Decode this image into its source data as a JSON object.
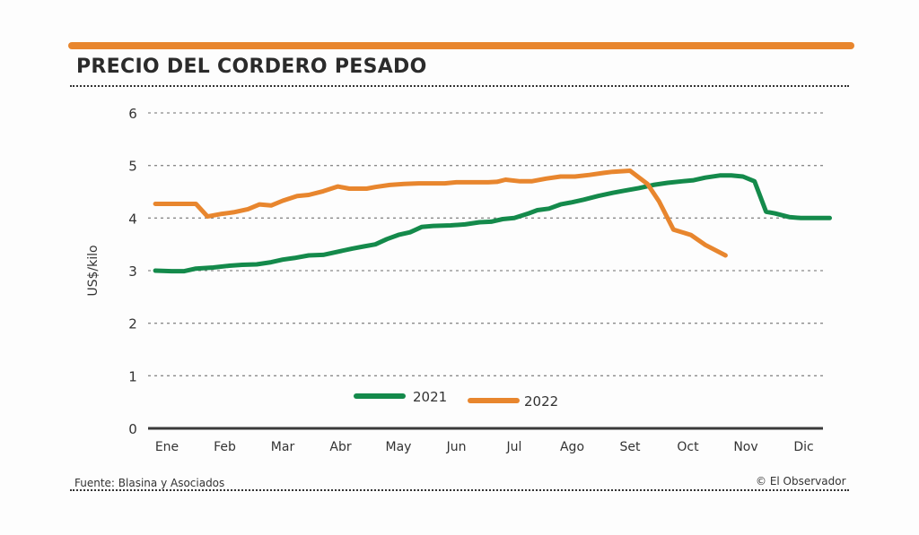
{
  "header": {
    "title": "PRECIO DEL CORDERO PESADO",
    "accent_color": "#e8862e"
  },
  "footer": {
    "source": "Fuente: Blasina y Asociados",
    "credit": "© El Observador"
  },
  "chart_data": {
    "type": "line",
    "title": "PRECIO DEL CORDERO PESADO",
    "xlabel": "",
    "ylabel": "US$/kilo",
    "ylim": [
      0,
      6
    ],
    "yticks": [
      "0",
      "1",
      "2",
      "3",
      "4",
      "5",
      "6"
    ],
    "categories": [
      "Ene",
      "Feb",
      "Mar",
      "Abr",
      "May",
      "Jun",
      "Jul",
      "Ago",
      "Set",
      "Oct",
      "Nov",
      "Dic"
    ],
    "grid": true,
    "legend": "bottom-center",
    "x_unit": "month index (0 = Ene)",
    "series": [
      {
        "name": "2021",
        "color": "#148a4b",
        "x": [
          -0.2,
          0.08,
          0.3,
          0.5,
          0.8,
          1.05,
          1.3,
          1.55,
          1.8,
          2.0,
          2.2,
          2.45,
          2.7,
          2.95,
          3.2,
          3.4,
          3.6,
          3.8,
          4.0,
          4.2,
          4.4,
          4.6,
          4.9,
          5.15,
          5.4,
          5.6,
          5.8,
          6.0,
          6.25,
          6.4,
          6.6,
          6.8,
          7.0,
          7.2,
          7.45,
          7.7,
          7.9,
          8.15,
          8.4,
          8.65,
          8.9,
          9.1,
          9.3,
          9.55,
          9.75,
          9.95,
          10.15,
          10.35,
          10.5,
          10.75,
          10.95,
          11.2,
          11.45
        ],
        "values": [
          3.0,
          2.99,
          2.99,
          3.04,
          3.06,
          3.09,
          3.11,
          3.12,
          3.16,
          3.21,
          3.24,
          3.29,
          3.3,
          3.36,
          3.42,
          3.46,
          3.5,
          3.6,
          3.68,
          3.73,
          3.83,
          3.85,
          3.86,
          3.88,
          3.92,
          3.93,
          3.98,
          4.0,
          4.09,
          4.15,
          4.18,
          4.26,
          4.3,
          4.35,
          4.42,
          4.48,
          4.52,
          4.57,
          4.63,
          4.67,
          4.7,
          4.72,
          4.77,
          4.81,
          4.81,
          4.79,
          4.7,
          4.12,
          4.09,
          4.02,
          4.0,
          4.0,
          4.0
        ]
      },
      {
        "name": "2022",
        "color": "#e8862e",
        "x": [
          -0.2,
          0.1,
          0.3,
          0.5,
          0.7,
          0.95,
          1.15,
          1.4,
          1.6,
          1.8,
          2.0,
          2.25,
          2.45,
          2.7,
          2.95,
          3.15,
          3.45,
          3.6,
          3.85,
          4.1,
          4.35,
          4.6,
          4.8,
          5.0,
          5.3,
          5.55,
          5.7,
          5.85,
          6.1,
          6.3,
          6.55,
          6.8,
          7.05,
          7.3,
          7.55,
          7.7,
          8.0,
          8.3,
          8.5,
          8.75,
          9.05,
          9.3,
          9.65
        ],
        "values": [
          4.27,
          4.27,
          4.27,
          4.27,
          4.03,
          4.08,
          4.11,
          4.17,
          4.26,
          4.24,
          4.33,
          4.42,
          4.44,
          4.51,
          4.6,
          4.56,
          4.56,
          4.59,
          4.63,
          4.65,
          4.66,
          4.66,
          4.66,
          4.68,
          4.68,
          4.68,
          4.69,
          4.73,
          4.7,
          4.7,
          4.75,
          4.79,
          4.79,
          4.82,
          4.86,
          4.88,
          4.9,
          4.65,
          4.32,
          3.78,
          3.68,
          3.49,
          3.29
        ]
      }
    ]
  }
}
